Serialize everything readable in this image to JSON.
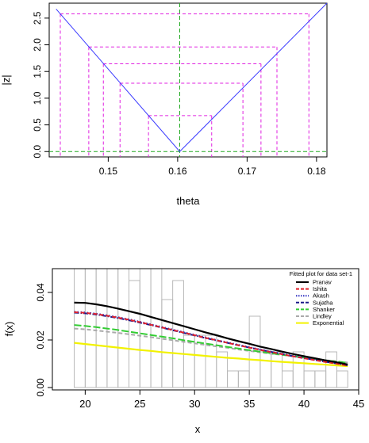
{
  "chart_data": [
    {
      "type": "line",
      "xlabel": "theta",
      "ylabel": "|z|",
      "xlim": [
        0.1415,
        0.1815
      ],
      "ylim": [
        -0.1,
        2.78
      ],
      "x_ticks": [
        0.15,
        0.16,
        0.17,
        0.18
      ],
      "y_ticks": [
        0.0,
        0.5,
        1.0,
        1.5,
        2.0,
        2.5
      ],
      "x_tick_labels": [
        "0.15",
        "0.16",
        "0.17",
        "0.18"
      ],
      "y_tick_labels": [
        "0.0",
        "0.5",
        "1.0",
        "1.5",
        "2.0",
        "2.5"
      ],
      "grid": false,
      "series": [
        {
          "color": "#3b3bff",
          "style": "solid",
          "x": [
            0.1425,
            0.1603,
            0.1815
          ],
          "y": [
            2.67,
            0.0,
            2.82
          ]
        }
      ],
      "reference_lines": {
        "vertical_x": 0.1603,
        "horizontal_y": 0.0,
        "color": "#22aa22",
        "style": "dashed"
      },
      "interval_boxes": {
        "color": "#e020e0",
        "style": "dashed",
        "levels": [
          {
            "y": 2.58,
            "x_left": 0.1431,
            "x_right": 0.1789
          },
          {
            "y": 1.96,
            "x_left": 0.1472,
            "x_right": 0.1743
          },
          {
            "y": 1.645,
            "x_left": 0.1493,
            "x_right": 0.172
          },
          {
            "y": 1.28,
            "x_left": 0.1517,
            "x_right": 0.1694
          },
          {
            "y": 0.674,
            "x_left": 0.1558,
            "x_right": 0.1649
          }
        ]
      }
    },
    {
      "type": "line",
      "title": "Fitted plot for data set-1",
      "xlabel": "x",
      "ylabel": "f(x)",
      "xlim": [
        17,
        45
      ],
      "ylim": [
        -0.001,
        0.05
      ],
      "x_ticks": [
        20,
        25,
        30,
        35,
        40,
        45
      ],
      "y_ticks": [
        0.0,
        0.02,
        0.04
      ],
      "x_tick_labels": [
        "20",
        "25",
        "30",
        "35",
        "40",
        "45"
      ],
      "y_tick_labels": [
        "0.00",
        "0.02",
        "0.04"
      ],
      "grid": false,
      "legend_position": "top-right",
      "histogram": {
        "bins": [
          19,
          20,
          21,
          22,
          23,
          24,
          25,
          26,
          27,
          28,
          29,
          30,
          31,
          32,
          33,
          34,
          35,
          36,
          37,
          38,
          39,
          40,
          41,
          42,
          43,
          44
        ],
        "heights": [
          0.052,
          0.052,
          0.052,
          0.052,
          0.052,
          0.045,
          0.052,
          0.052,
          0.037,
          0.045,
          0.022,
          0.022,
          0.022,
          0.015,
          0.007,
          0.007,
          0.03,
          0.015,
          0.015,
          0.007,
          0.015,
          0.007,
          0.007,
          0.015,
          0.007
        ],
        "color": "#b8b8b8"
      },
      "x": [
        19,
        20,
        21,
        22,
        23,
        24,
        25,
        26,
        27,
        28,
        29,
        30,
        31,
        32,
        33,
        34,
        35,
        36,
        37,
        38,
        39,
        40,
        41,
        42,
        43,
        44
      ],
      "series": [
        {
          "name": "Pranav",
          "color": "#000000",
          "style": "solid",
          "values": [
            0.0357,
            0.0356,
            0.035,
            0.0342,
            0.0332,
            0.0321,
            0.031,
            0.0297,
            0.0284,
            0.0271,
            0.0258,
            0.0245,
            0.0232,
            0.022,
            0.0207,
            0.0195,
            0.0184,
            0.0172,
            0.0162,
            0.0151,
            0.0141,
            0.0132,
            0.0123,
            0.0114,
            0.0106,
            0.0097
          ]
        },
        {
          "name": "Ishita",
          "color": "#e0202a",
          "style": "dashed",
          "values": [
            0.0317,
            0.0314,
            0.0309,
            0.0302,
            0.0294,
            0.0285,
            0.0275,
            0.0264,
            0.0253,
            0.0242,
            0.0231,
            0.022,
            0.0209,
            0.0199,
            0.0188,
            0.0178,
            0.0168,
            0.0158,
            0.0149,
            0.014,
            0.0131,
            0.0123,
            0.0115,
            0.0107,
            0.01,
            0.0092
          ]
        },
        {
          "name": "Akash",
          "color": "#3030c0",
          "style": "dotted",
          "values": [
            0.0319,
            0.0316,
            0.0311,
            0.0304,
            0.0296,
            0.0287,
            0.0277,
            0.0266,
            0.0255,
            0.0244,
            0.0233,
            0.0222,
            0.0211,
            0.02,
            0.019,
            0.018,
            0.017,
            0.016,
            0.0151,
            0.0142,
            0.0133,
            0.0125,
            0.0117,
            0.0109,
            0.0102,
            0.0094
          ]
        },
        {
          "name": "Sujatha",
          "color": "#1a1a8a",
          "style": "dashdot",
          "values": [
            0.0315,
            0.0312,
            0.0307,
            0.03,
            0.0292,
            0.0283,
            0.0273,
            0.0263,
            0.0252,
            0.0241,
            0.023,
            0.0219,
            0.0208,
            0.0198,
            0.0188,
            0.0178,
            0.0168,
            0.0159,
            0.015,
            0.0141,
            0.0132,
            0.0124,
            0.0116,
            0.0108,
            0.0101,
            0.0093
          ]
        },
        {
          "name": "Shanker",
          "color": "#33cc33",
          "style": "longdash",
          "values": [
            0.0263,
            0.0259,
            0.0254,
            0.0248,
            0.0242,
            0.0235,
            0.0228,
            0.0221,
            0.0214,
            0.0207,
            0.0199,
            0.0192,
            0.0185,
            0.0178,
            0.0171,
            0.0164,
            0.0157,
            0.0151,
            0.0144,
            0.0138,
            0.0132,
            0.0126,
            0.012,
            0.0114,
            0.0109,
            0.0104
          ]
        },
        {
          "name": "Lindley",
          "color": "#aaaaaa",
          "style": "dashed",
          "values": [
            0.0248,
            0.0245,
            0.024,
            0.0235,
            0.023,
            0.0224,
            0.0218,
            0.0212,
            0.0205,
            0.0199,
            0.0192,
            0.0186,
            0.0179,
            0.0173,
            0.0167,
            0.016,
            0.0154,
            0.0148,
            0.0142,
            0.0137,
            0.0131,
            0.0126,
            0.012,
            0.0115,
            0.011,
            0.0105
          ]
        },
        {
          "name": "Exponential",
          "color": "#f2f200",
          "style": "solid",
          "values": [
            0.0188,
            0.0183,
            0.0178,
            0.0173,
            0.0168,
            0.0163,
            0.0158,
            0.0154,
            0.0149,
            0.0145,
            0.0141,
            0.0137,
            0.0133,
            0.0129,
            0.0125,
            0.0122,
            0.0118,
            0.0115,
            0.0111,
            0.0108,
            0.0105,
            0.0102,
            0.0099,
            0.0096,
            0.0093,
            0.009
          ]
        }
      ]
    }
  ]
}
